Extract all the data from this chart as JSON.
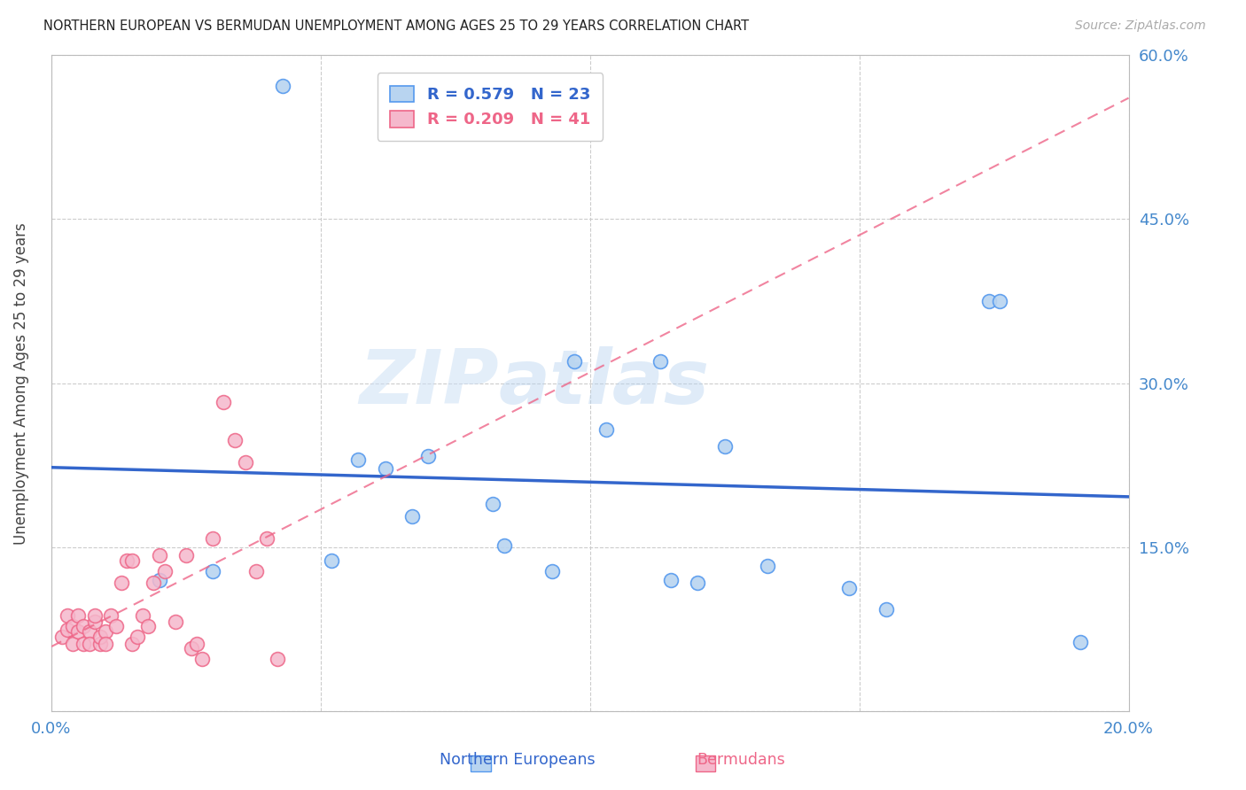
{
  "title": "NORTHERN EUROPEAN VS BERMUDAN UNEMPLOYMENT AMONG AGES 25 TO 29 YEARS CORRELATION CHART",
  "source": "Source: ZipAtlas.com",
  "ylabel": "Unemployment Among Ages 25 to 29 years",
  "xlim": [
    0.0,
    0.2
  ],
  "ylim": [
    0.0,
    0.6
  ],
  "xticks": [
    0.0,
    0.05,
    0.1,
    0.15,
    0.2
  ],
  "yticks": [
    0.0,
    0.15,
    0.3,
    0.45,
    0.6
  ],
  "xtick_labels": [
    "0.0%",
    "",
    "",
    "",
    "20.0%"
  ],
  "ytick_labels": [
    "",
    "15.0%",
    "30.0%",
    "45.0%",
    "60.0%"
  ],
  "blue_color": "#b8d4f0",
  "blue_edge_color": "#5599ee",
  "pink_color": "#f5b8cc",
  "pink_edge_color": "#ee6688",
  "blue_line_color": "#3366cc",
  "pink_line_color": "#dd5577",
  "legend_R_blue": "R = 0.579",
  "legend_N_blue": "N = 23",
  "legend_R_pink": "R = 0.209",
  "legend_N_pink": "N = 41",
  "watermark_zip": "ZIP",
  "watermark_atlas": "atlas",
  "tick_label_color": "#4488cc",
  "bg_color": "#ffffff",
  "grid_color": "#cccccc",
  "marker_size": 130,
  "blue_x": [
    0.043,
    0.02,
    0.03,
    0.052,
    0.062,
    0.067,
    0.07,
    0.057,
    0.082,
    0.084,
    0.093,
    0.097,
    0.103,
    0.113,
    0.115,
    0.125,
    0.133,
    0.12,
    0.148,
    0.155,
    0.174,
    0.176,
    0.191
  ],
  "blue_y": [
    0.572,
    0.12,
    0.128,
    0.138,
    0.222,
    0.178,
    0.233,
    0.23,
    0.19,
    0.152,
    0.128,
    0.32,
    0.258,
    0.32,
    0.12,
    0.242,
    0.133,
    0.118,
    0.113,
    0.093,
    0.375,
    0.375,
    0.063
  ],
  "pink_x": [
    0.002,
    0.003,
    0.003,
    0.004,
    0.004,
    0.005,
    0.005,
    0.006,
    0.006,
    0.007,
    0.007,
    0.008,
    0.008,
    0.009,
    0.009,
    0.01,
    0.01,
    0.011,
    0.012,
    0.013,
    0.014,
    0.015,
    0.015,
    0.016,
    0.017,
    0.018,
    0.019,
    0.02,
    0.021,
    0.023,
    0.025,
    0.026,
    0.027,
    0.028,
    0.03,
    0.032,
    0.034,
    0.036,
    0.038,
    0.04,
    0.042
  ],
  "pink_y": [
    0.068,
    0.075,
    0.088,
    0.062,
    0.078,
    0.073,
    0.088,
    0.062,
    0.078,
    0.073,
    0.062,
    0.082,
    0.088,
    0.062,
    0.068,
    0.073,
    0.062,
    0.088,
    0.078,
    0.118,
    0.138,
    0.138,
    0.062,
    0.068,
    0.088,
    0.078,
    0.118,
    0.143,
    0.128,
    0.082,
    0.143,
    0.058,
    0.062,
    0.048,
    0.158,
    0.283,
    0.248,
    0.228,
    0.128,
    0.158,
    0.048
  ]
}
